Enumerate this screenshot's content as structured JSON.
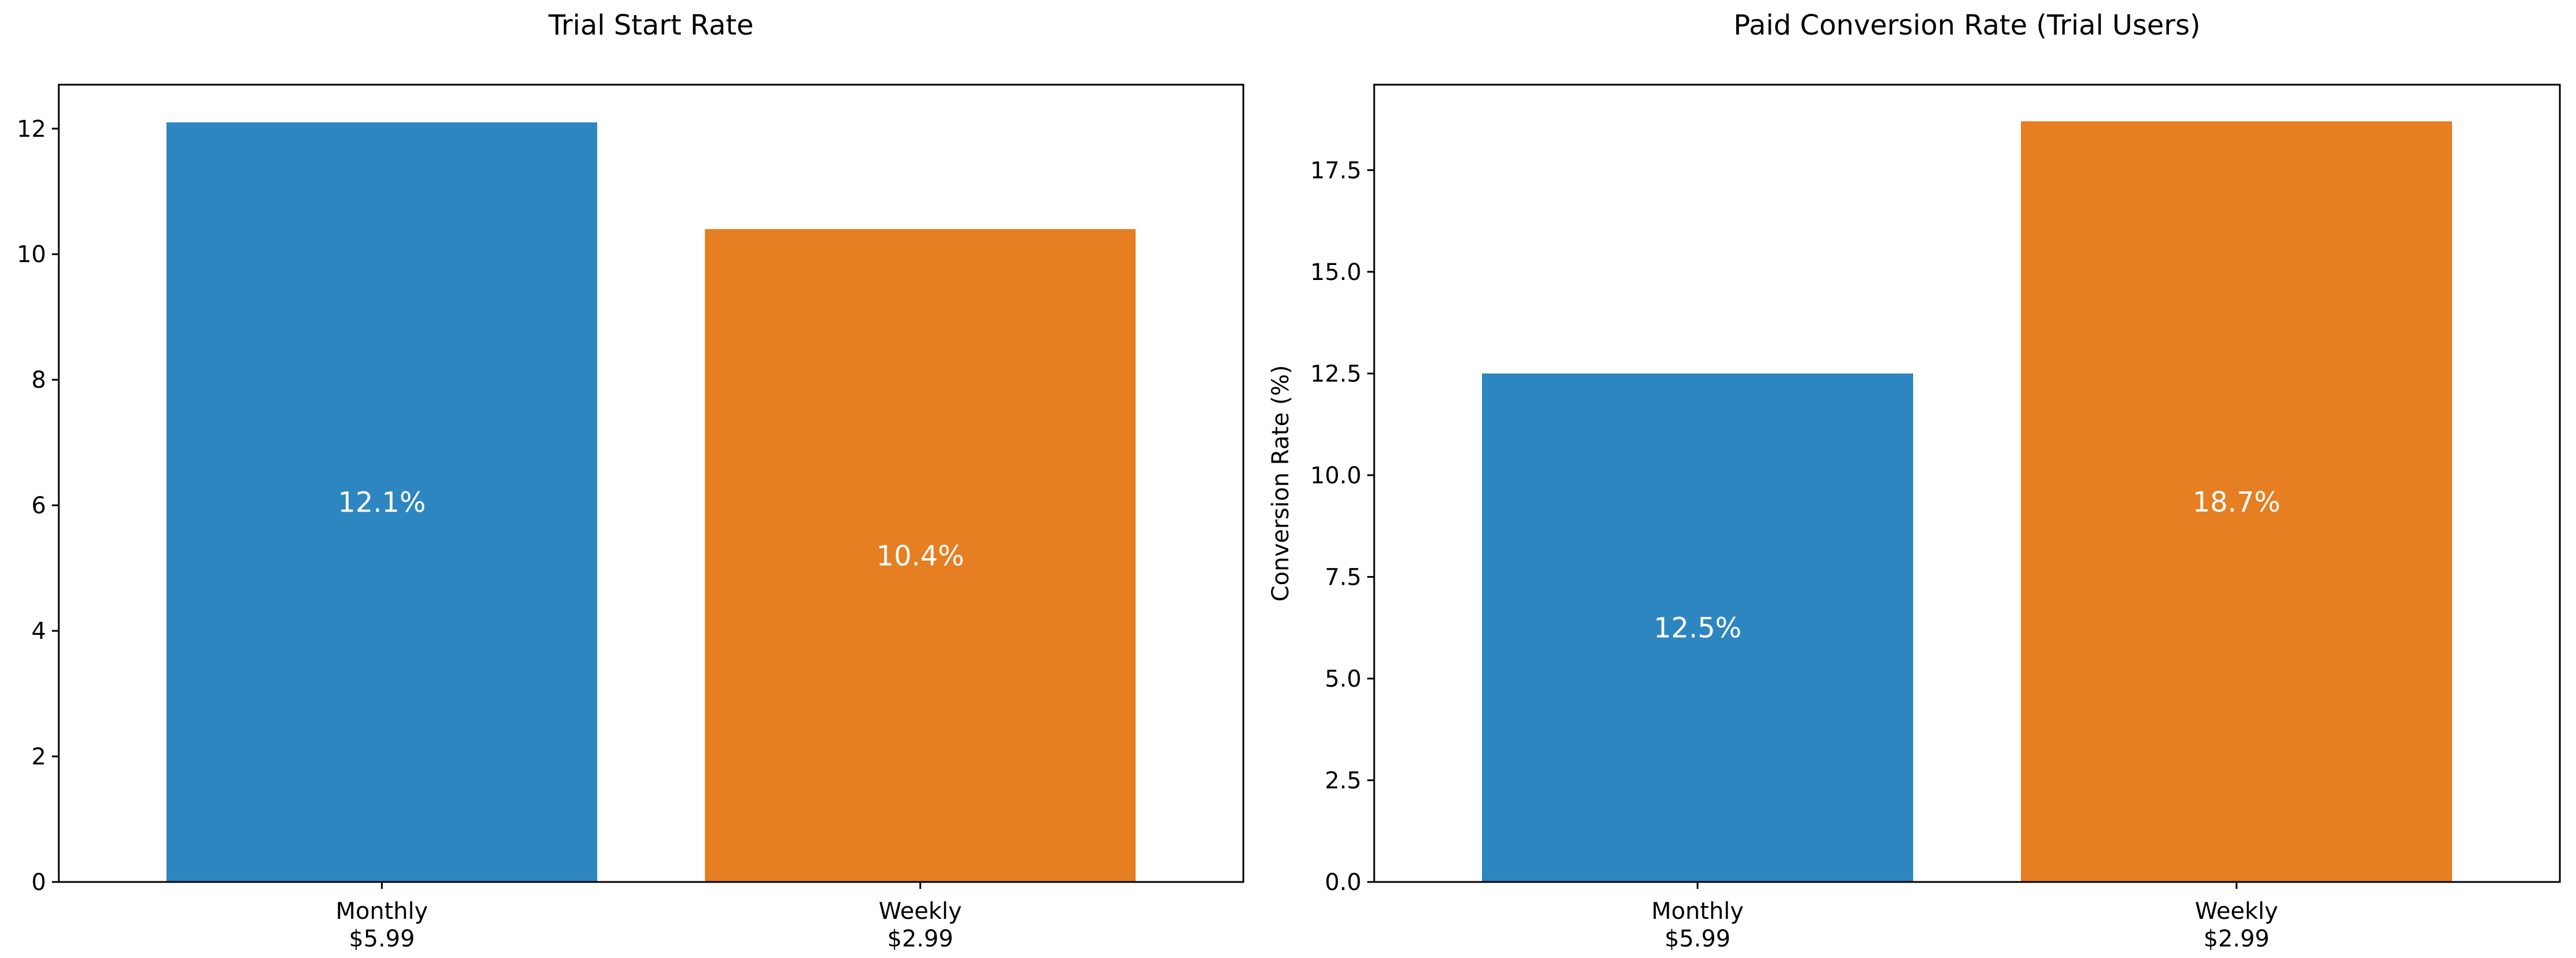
{
  "chart_data": [
    {
      "type": "bar",
      "title": "Trial Start Rate",
      "xlabel": "",
      "ylabel": "",
      "categories": [
        "Monthly\n$5.99",
        "Weekly\n$2.99"
      ],
      "values": [
        12.1,
        10.4
      ],
      "data_labels": [
        "12.1%",
        "10.4%"
      ],
      "colors": [
        "#2e86c1",
        "#e67e22"
      ],
      "ylim": [
        0,
        12.7
      ],
      "yticks": [
        0,
        2,
        4,
        6,
        8,
        10,
        12
      ],
      "ytick_labels": [
        "0",
        "2",
        "4",
        "6",
        "8",
        "10",
        "12"
      ],
      "grid": false,
      "legend": "none"
    },
    {
      "type": "bar",
      "title": "Paid Conversion Rate (Trial Users)",
      "xlabel": "",
      "ylabel": "Conversion Rate (%)",
      "categories": [
        "Monthly\n$5.99",
        "Weekly\n$2.99"
      ],
      "values": [
        12.5,
        18.7
      ],
      "data_labels": [
        "12.5%",
        "18.7%"
      ],
      "colors": [
        "#2e86c1",
        "#e67e22"
      ],
      "ylim": [
        0,
        19.6
      ],
      "yticks": [
        0,
        2.5,
        5,
        7.5,
        10,
        12.5,
        15,
        17.5
      ],
      "ytick_labels": [
        "0.0",
        "2.5",
        "5.0",
        "7.5",
        "10.0",
        "12.5",
        "15.0",
        "17.5"
      ],
      "grid": false,
      "legend": "none"
    }
  ]
}
